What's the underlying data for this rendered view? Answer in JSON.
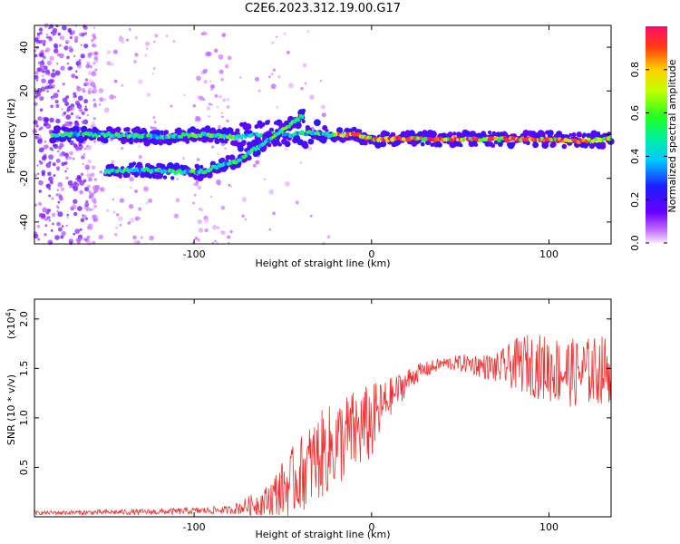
{
  "title": "C2E6.2023.312.19.00.G17",
  "chart_data": [
    {
      "type": "heatmap",
      "xlabel": "Height of straight line (km)",
      "ylabel": "Frequency (Hz)",
      "xlim": [
        -190,
        135
      ],
      "ylim": [
        -50,
        50
      ],
      "xticks": [
        -100,
        0,
        100
      ],
      "yticks": [
        -40,
        -20,
        0,
        20,
        40
      ],
      "grid": false,
      "description_traces": [
        {
          "label_note": "main trace",
          "x": [
            -180,
            -150,
            -120,
            -95,
            -75,
            -60,
            -45,
            -35,
            -25,
            -10,
            0,
            20,
            40,
            60,
            80,
            100,
            115,
            135
          ],
          "y": [
            0,
            0,
            -1,
            0,
            -1,
            0,
            0,
            1,
            0,
            0,
            -2,
            -2,
            -2,
            -2,
            -2,
            -2,
            -3,
            -2
          ]
        },
        {
          "label_note": "lower trace",
          "x": [
            -150,
            -130,
            -110,
            -95,
            -85,
            -75,
            -65,
            -55,
            -45,
            -38
          ],
          "y": [
            -17,
            -16,
            -17,
            -17,
            -14,
            -12,
            -6,
            -1,
            5,
            9
          ]
        }
      ],
      "colorbar": {
        "label": "Normalized spectral amplitude",
        "ticks": [
          "0.0",
          "0.2",
          "0.4",
          "0.6",
          "0.8"
        ],
        "range": [
          0,
          1
        ]
      }
    },
    {
      "type": "line",
      "xlabel": "Height of straight line (km)",
      "ylabel": "SNR (10 * v/v)",
      "multiplier": "(x10",
      "multiplier_exp": "4",
      "multiplier_close": ")",
      "xlim": [
        -190,
        135
      ],
      "ylim": [
        0,
        2.2
      ],
      "xticks": [
        -100,
        0,
        100
      ],
      "yticks": [
        "0.5",
        "1.0",
        "1.5",
        "2.0"
      ],
      "series_color": "#f03030",
      "envelope": {
        "x": [
          -190,
          -120,
          -80,
          -60,
          -45,
          -30,
          -15,
          0,
          10,
          25,
          40,
          55,
          70,
          85,
          100,
          115,
          135
        ],
        "mean": [
          0.04,
          0.05,
          0.07,
          0.15,
          0.35,
          0.6,
          0.8,
          0.95,
          1.2,
          1.45,
          1.55,
          1.55,
          1.5,
          1.55,
          1.5,
          1.45,
          1.5
        ],
        "spread": [
          0.02,
          0.03,
          0.04,
          0.15,
          0.35,
          0.45,
          0.45,
          0.4,
          0.2,
          0.1,
          0.06,
          0.1,
          0.15,
          0.3,
          0.35,
          0.35,
          0.35
        ]
      }
    }
  ]
}
